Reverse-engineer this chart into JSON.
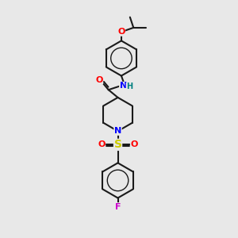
{
  "background_color": "#e8e8e8",
  "bond_color": "#1a1a1a",
  "bond_width": 1.5,
  "atom_colors": {
    "O": "#ff0000",
    "N": "#0000ff",
    "S": "#cccc00",
    "F": "#cc00cc",
    "H": "#008080",
    "C": "#1a1a1a"
  },
  "font_size_atom": 8,
  "doffset": 0.07
}
